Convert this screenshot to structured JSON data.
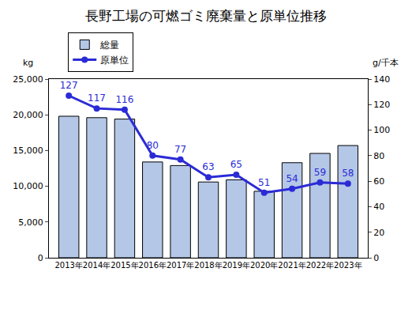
{
  "chart_data": {
    "type": "bar",
    "title": "長野工場の可燃ゴミ廃棄量と原単位推移",
    "ylabel": "kg",
    "y2label": "g/千本",
    "categories": [
      "2013年",
      "2014年",
      "2015年",
      "2016年",
      "2017年",
      "2018年",
      "2019年",
      "2020年",
      "2021年",
      "2022年",
      "2023年"
    ],
    "series": [
      {
        "name": "総量",
        "type": "bar",
        "color": "#b4c7e7",
        "values": [
          19800,
          19600,
          19400,
          13400,
          12900,
          10600,
          10900,
          9300,
          13300,
          14600,
          15700
        ]
      },
      {
        "name": "原単位",
        "type": "line",
        "axis": "y2",
        "color": "#2b2bd6",
        "marker": "circle",
        "line_style": "solid",
        "data_labels": true,
        "values": [
          127,
          117,
          116,
          80,
          77,
          63,
          65,
          51,
          54,
          59,
          58
        ]
      }
    ],
    "ylim": [
      0,
      25000
    ],
    "yticks": [
      0,
      {
        "value": 5000,
        "label": "5,000"
      },
      {
        "value": 10000,
        "label": "10,000"
      },
      {
        "value": 15000,
        "label": "15,000"
      },
      {
        "value": 20000,
        "label": "20,000"
      },
      {
        "value": 25000,
        "label": "25,000"
      }
    ],
    "y2lim": [
      0,
      140
    ],
    "y2ticks": [
      0,
      20,
      40,
      60,
      80,
      100,
      120,
      140
    ],
    "grid": false,
    "legend": "top-left"
  }
}
